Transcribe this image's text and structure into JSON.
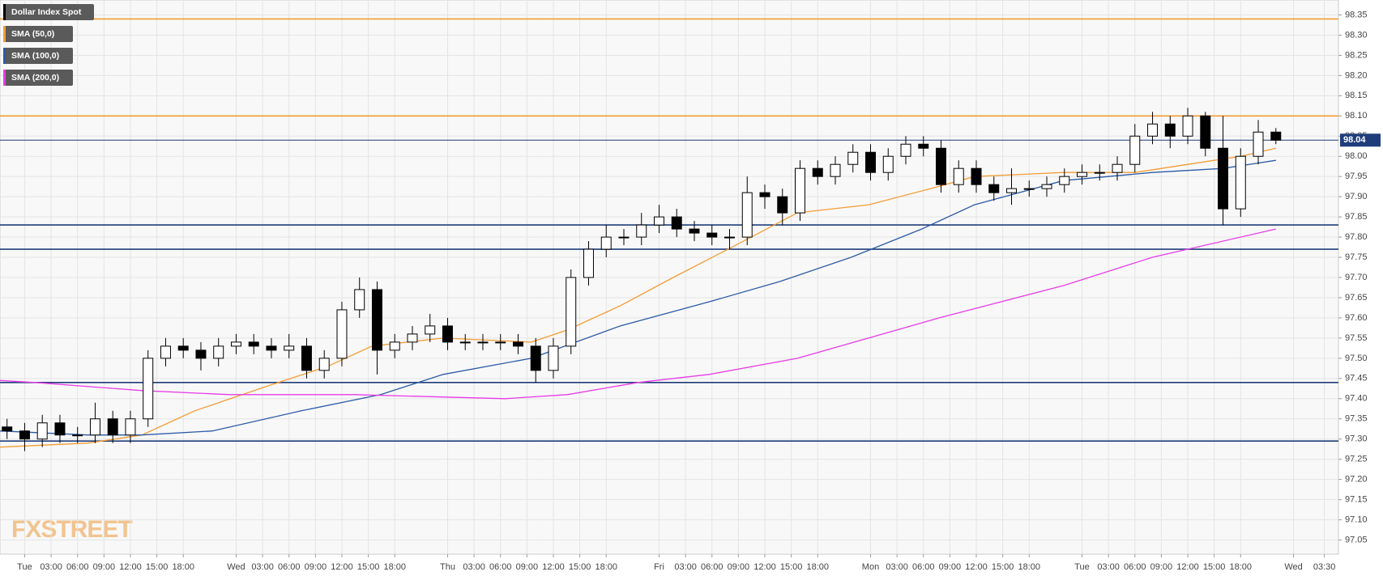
{
  "chart_data": {
    "type": "candlestick",
    "name": "Dollar Index Spot",
    "watermark": "FXSTREET",
    "xlim": [
      -2.8,
      149.1
    ],
    "ylim": [
      97.015,
      98.387
    ],
    "grid": true,
    "legend": "top-left",
    "candle_color": "#000000",
    "xticks": [
      {
        "value": 0,
        "label": "Tue"
      },
      {
        "value": 3,
        "label": "03:00"
      },
      {
        "value": 6,
        "label": "06:00"
      },
      {
        "value": 9,
        "label": "09:00"
      },
      {
        "value": 12,
        "label": "12:00"
      },
      {
        "value": 15,
        "label": "15:00"
      },
      {
        "value": 18,
        "label": "18:00"
      },
      {
        "value": 24,
        "label": "Wed"
      },
      {
        "value": 27,
        "label": "03:00"
      },
      {
        "value": 30,
        "label": "06:00"
      },
      {
        "value": 33,
        "label": "09:00"
      },
      {
        "value": 36,
        "label": "12:00"
      },
      {
        "value": 39,
        "label": "15:00"
      },
      {
        "value": 42,
        "label": "18:00"
      },
      {
        "value": 48,
        "label": "Thu"
      },
      {
        "value": 51,
        "label": "03:00"
      },
      {
        "value": 54,
        "label": "06:00"
      },
      {
        "value": 57,
        "label": "09:00"
      },
      {
        "value": 60,
        "label": "12:00"
      },
      {
        "value": 63,
        "label": "15:00"
      },
      {
        "value": 66,
        "label": "18:00"
      },
      {
        "value": 72,
        "label": "Fri"
      },
      {
        "value": 75,
        "label": "03:00"
      },
      {
        "value": 78,
        "label": "06:00"
      },
      {
        "value": 81,
        "label": "09:00"
      },
      {
        "value": 84,
        "label": "12:00"
      },
      {
        "value": 87,
        "label": "15:00"
      },
      {
        "value": 90,
        "label": "18:00"
      },
      {
        "value": 96,
        "label": "Mon"
      },
      {
        "value": 99,
        "label": "03:00"
      },
      {
        "value": 102,
        "label": "06:00"
      },
      {
        "value": 105,
        "label": "09:00"
      },
      {
        "value": 108,
        "label": "12:00"
      },
      {
        "value": 111,
        "label": "15:00"
      },
      {
        "value": 114,
        "label": "18:00"
      },
      {
        "value": 120,
        "label": "Tue"
      },
      {
        "value": 123,
        "label": "03:00"
      },
      {
        "value": 126,
        "label": "06:00"
      },
      {
        "value": 129,
        "label": "09:00"
      },
      {
        "value": 132,
        "label": "12:00"
      },
      {
        "value": 135,
        "label": "15:00"
      },
      {
        "value": 138,
        "label": "18:00"
      },
      {
        "value": 144,
        "label": "Wed"
      },
      {
        "value": 147.5,
        "label": "03:30"
      }
    ],
    "yticks": [
      {
        "value": 97.05,
        "label": "97.05"
      },
      {
        "value": 97.1,
        "label": "97.10"
      },
      {
        "value": 97.15,
        "label": "97.15"
      },
      {
        "value": 97.2,
        "label": "97.20"
      },
      {
        "value": 97.25,
        "label": "97.25"
      },
      {
        "value": 97.3,
        "label": "97.30"
      },
      {
        "value": 97.35,
        "label": "97.35"
      },
      {
        "value": 97.4,
        "label": "97.40"
      },
      {
        "value": 97.45,
        "label": "97.45"
      },
      {
        "value": 97.5,
        "label": "97.50"
      },
      {
        "value": 97.55,
        "label": "97.55"
      },
      {
        "value": 97.6,
        "label": "97.60"
      },
      {
        "value": 97.65,
        "label": "97.65"
      },
      {
        "value": 97.7,
        "label": "97.70"
      },
      {
        "value": 97.75,
        "label": "97.75"
      },
      {
        "value": 97.8,
        "label": "97.80"
      },
      {
        "value": 97.85,
        "label": "97.85"
      },
      {
        "value": 97.9,
        "label": "97.90"
      },
      {
        "value": 97.95,
        "label": "97.95"
      },
      {
        "value": 98.0,
        "label": "98.00"
      },
      {
        "value": 98.05,
        "label": "98.05"
      },
      {
        "value": 98.1,
        "label": "98.10"
      },
      {
        "value": 98.15,
        "label": "98.15"
      },
      {
        "value": 98.2,
        "label": "98.20"
      },
      {
        "value": 98.25,
        "label": "98.25"
      },
      {
        "value": 98.3,
        "label": "98.30"
      },
      {
        "value": 98.35,
        "label": "98.35"
      }
    ],
    "x": [
      -2,
      0,
      2,
      4,
      6,
      8,
      10,
      12,
      14,
      16,
      18,
      20,
      22,
      24,
      26,
      28,
      30,
      32,
      34,
      36,
      38,
      40,
      42,
      44,
      46,
      48,
      50,
      52,
      54,
      56,
      58,
      60,
      62,
      64,
      66,
      68,
      70,
      72,
      74,
      76,
      78,
      80,
      82,
      84,
      86,
      88,
      90,
      92,
      94,
      96,
      98,
      100,
      102,
      104,
      106,
      108,
      110,
      112,
      114,
      116,
      118,
      120,
      122,
      124,
      126,
      128,
      130,
      132,
      134,
      136,
      138,
      140,
      142
    ],
    "open": [
      97.33,
      97.32,
      97.3,
      97.34,
      97.31,
      97.31,
      97.35,
      97.31,
      97.35,
      97.5,
      97.53,
      97.52,
      97.5,
      97.53,
      97.54,
      97.53,
      97.52,
      97.53,
      97.47,
      97.5,
      97.62,
      97.67,
      97.52,
      97.54,
      97.56,
      97.58,
      97.54,
      97.54,
      97.54,
      97.54,
      97.53,
      97.47,
      97.53,
      97.7,
      97.77,
      97.8,
      97.8,
      97.83,
      97.85,
      97.82,
      97.81,
      97.8,
      97.8,
      97.91,
      97.9,
      97.86,
      97.97,
      97.95,
      97.98,
      98.01,
      97.96,
      98.0,
      98.03,
      98.02,
      97.93,
      97.97,
      97.93,
      97.91,
      97.92,
      97.92,
      97.93,
      97.95,
      97.96,
      97.96,
      97.98,
      98.05,
      98.08,
      98.05,
      98.1,
      98.02,
      97.87,
      98.0,
      98.06
    ],
    "high": [
      97.35,
      97.34,
      97.36,
      97.36,
      97.33,
      97.39,
      97.37,
      97.37,
      97.52,
      97.55,
      97.55,
      97.54,
      97.55,
      97.56,
      97.56,
      97.55,
      97.56,
      97.55,
      97.52,
      97.64,
      97.7,
      97.69,
      97.56,
      97.58,
      97.61,
      97.6,
      97.56,
      97.56,
      97.56,
      97.56,
      97.55,
      97.55,
      97.72,
      97.79,
      97.83,
      97.82,
      97.86,
      97.88,
      97.87,
      97.84,
      97.83,
      97.82,
      97.95,
      97.93,
      97.92,
      97.99,
      97.99,
      98.0,
      98.03,
      98.03,
      98.02,
      98.05,
      98.05,
      98.04,
      97.99,
      97.99,
      97.95,
      97.97,
      97.94,
      97.95,
      97.97,
      97.98,
      97.98,
      98.0,
      98.08,
      98.11,
      98.1,
      98.12,
      98.11,
      98.1,
      98.02,
      98.09,
      98.07
    ],
    "low": [
      97.3,
      97.27,
      97.28,
      97.29,
      97.29,
      97.29,
      97.29,
      97.29,
      97.33,
      97.48,
      97.5,
      97.47,
      97.48,
      97.51,
      97.51,
      97.5,
      97.5,
      97.45,
      97.45,
      97.48,
      97.6,
      97.46,
      97.5,
      97.52,
      97.54,
      97.52,
      97.52,
      97.52,
      97.52,
      97.51,
      97.44,
      97.45,
      97.51,
      97.68,
      97.75,
      97.78,
      97.78,
      97.81,
      97.8,
      97.79,
      97.78,
      97.77,
      97.78,
      97.87,
      97.83,
      97.84,
      97.93,
      97.93,
      97.96,
      97.94,
      97.94,
      97.98,
      98.0,
      97.91,
      97.91,
      97.91,
      97.89,
      97.88,
      97.9,
      97.9,
      97.91,
      97.93,
      97.94,
      97.94,
      97.96,
      98.03,
      98.02,
      98.03,
      98.0,
      97.83,
      97.85,
      97.98,
      98.03
    ],
    "close": [
      97.32,
      97.3,
      97.34,
      97.31,
      97.31,
      97.35,
      97.31,
      97.35,
      97.5,
      97.53,
      97.52,
      97.5,
      97.53,
      97.54,
      97.53,
      97.52,
      97.53,
      97.47,
      97.5,
      97.62,
      97.67,
      97.52,
      97.54,
      97.56,
      97.58,
      97.54,
      97.54,
      97.54,
      97.54,
      97.53,
      97.47,
      97.53,
      97.7,
      97.77,
      97.8,
      97.8,
      97.83,
      97.85,
      97.82,
      97.81,
      97.8,
      97.8,
      97.91,
      97.9,
      97.86,
      97.97,
      97.95,
      97.98,
      98.01,
      97.96,
      98.0,
      98.03,
      98.02,
      97.93,
      97.97,
      97.93,
      97.91,
      97.92,
      97.92,
      97.93,
      97.95,
      97.96,
      97.96,
      97.98,
      98.05,
      98.08,
      98.05,
      98.1,
      98.02,
      97.87,
      98.0,
      98.06,
      98.04
    ],
    "last_price": 98.04,
    "last_price_color": "#1f3d7a",
    "lines": [
      {
        "name": "SMA (50,0)",
        "color": "#f39c34",
        "x": [
          -2.8,
          7.2,
          13.3,
          19.3,
          27.4,
          34.4,
          39.4,
          47.5,
          57.5,
          61.6,
          67.6,
          73.6,
          80.7,
          87.7,
          95.8,
          102.8,
          107.8,
          117.9,
          126,
          132,
          138,
          142
        ],
        "values": [
          97.28,
          97.29,
          97.31,
          97.37,
          97.43,
          97.48,
          97.53,
          97.55,
          97.54,
          97.57,
          97.63,
          97.7,
          97.78,
          97.86,
          97.88,
          97.92,
          97.95,
          97.96,
          97.96,
          97.98,
          98.0,
          98.02
        ]
      },
      {
        "name": "SMA (100,0)",
        "color": "#2b5aa6",
        "x": [
          -2.8,
          7.2,
          13.3,
          21.3,
          31.4,
          40.4,
          47.5,
          57.5,
          67.6,
          77.7,
          85.7,
          93.8,
          101.8,
          107.8,
          117.9,
          128,
          136,
          142
        ],
        "values": [
          97.32,
          97.31,
          97.31,
          97.32,
          97.37,
          97.41,
          97.46,
          97.5,
          97.58,
          97.64,
          97.69,
          97.75,
          97.82,
          97.88,
          97.94,
          97.96,
          97.97,
          97.99
        ]
      },
      {
        "name": "SMA (200,0)",
        "color": "#e83ce8",
        "x": [
          -2.8,
          1.2,
          13.3,
          23.3,
          37.4,
          54.5,
          61.6,
          69.6,
          77.7,
          87.7,
          103.8,
          117.9,
          128,
          142
        ],
        "values": [
          97.445,
          97.44,
          97.42,
          97.41,
          97.41,
          97.4,
          97.41,
          97.44,
          97.46,
          97.5,
          97.6,
          97.68,
          97.75,
          97.82
        ]
      }
    ],
    "levels": [
      {
        "value": 98.34,
        "color": "#f39c34"
      },
      {
        "value": 98.1,
        "color": "#f39c34"
      },
      {
        "value": 97.83,
        "color": "#1f3d7a"
      },
      {
        "value": 97.77,
        "color": "#1f3d7a"
      },
      {
        "value": 97.44,
        "color": "#1f3d7a"
      },
      {
        "value": 97.295,
        "color": "#1f3d7a"
      }
    ]
  }
}
